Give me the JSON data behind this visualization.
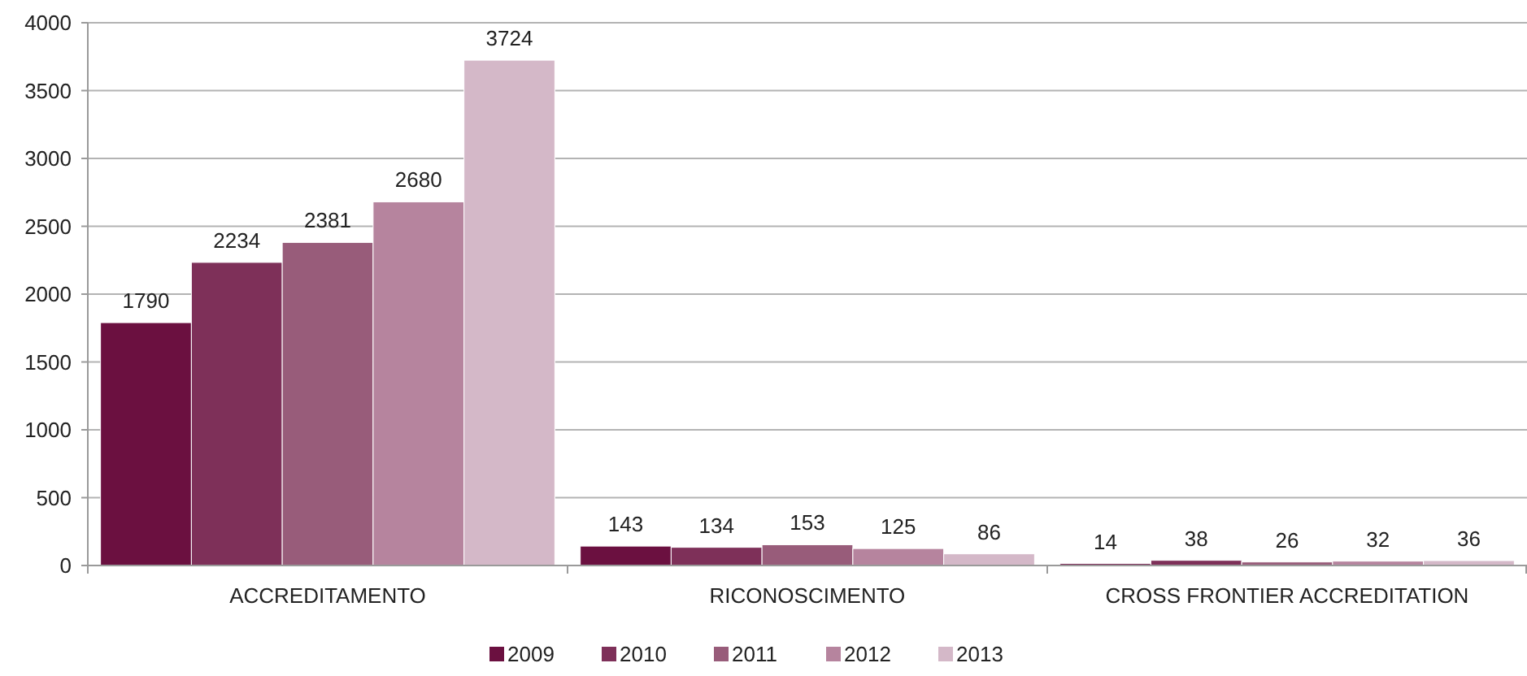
{
  "chart_data": {
    "type": "bar",
    "categories": [
      "ACCREDITAMENTO",
      "RICONOSCIMENTO",
      "CROSS FRONTIER ACCREDITATION"
    ],
    "series": [
      {
        "name": "2009",
        "color": "#6b1040",
        "values": [
          1790,
          143,
          14
        ]
      },
      {
        "name": "2010",
        "color": "#7e3059",
        "values": [
          2234,
          134,
          38
        ]
      },
      {
        "name": "2011",
        "color": "#985c7a",
        "values": [
          2381,
          153,
          26
        ]
      },
      {
        "name": "2012",
        "color": "#b6849e",
        "values": [
          2680,
          125,
          32
        ]
      },
      {
        "name": "2013",
        "color": "#d4b8c8",
        "values": [
          3724,
          86,
          36
        ]
      }
    ],
    "ylim": [
      0,
      4000
    ],
    "yticks": [
      0,
      500,
      1000,
      1500,
      2000,
      2500,
      3000,
      3500,
      4000
    ],
    "grid": "y",
    "legend": "bottom",
    "data_labels": true
  }
}
